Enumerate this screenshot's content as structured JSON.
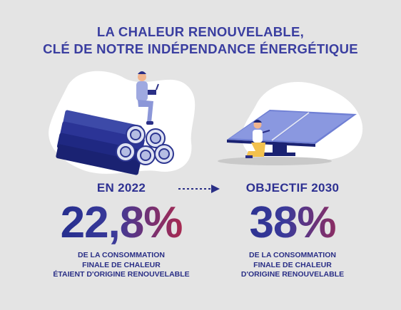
{
  "title": {
    "line1": "LA CHALEUR RENOUVELABLE,",
    "line2": "CLÉ DE NOTRE INDÉPENDANCE ÉNERGÉTIQUE"
  },
  "left": {
    "year": "EN 2022",
    "value": "22,8%",
    "desc": [
      "DE LA CONSOMMATION",
      "FINALE DE CHALEUR",
      "ÉTAIENT D'ORIGINE RENOUVELABLE"
    ]
  },
  "right": {
    "year": "OBJECTIF 2030",
    "value": "38%",
    "desc": [
      "DE LA CONSOMMATION",
      "FINALE DE CHALEUR",
      "D'ORIGINE RENOUVELABLE"
    ]
  },
  "colors": {
    "background": "#e4e4e4",
    "title": "#3a3ea0",
    "gradient_start": "#1f2a8a",
    "gradient_end": "#c4253e"
  },
  "icons": [
    "pipes-with-person-illustration",
    "solar-panel-with-worker-illustration",
    "dotted-arrow-icon"
  ]
}
